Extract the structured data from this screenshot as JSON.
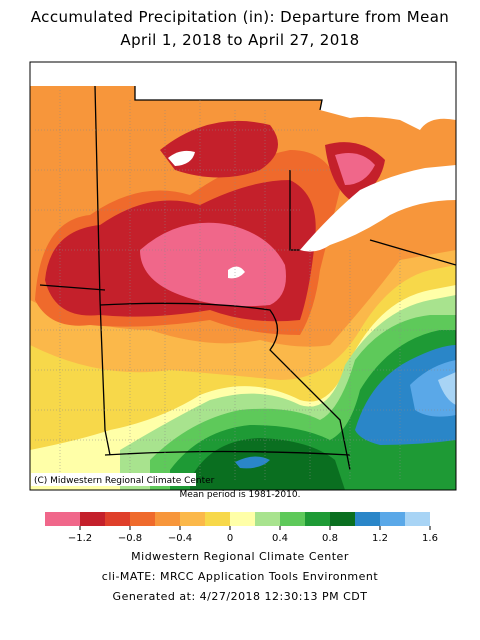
{
  "title": [
    "Accumulated Precipitation (in): Departure from Mean",
    "April 1, 2018 to April 27, 2018"
  ],
  "copyright": "(C) Midwestern Regional Climate Center",
  "mean_period": "Mean period is 1981-2010.",
  "legend": {
    "colors": [
      "#f0678a",
      "#c4202b",
      "#df3f2a",
      "#ef6a2c",
      "#f7963b",
      "#fbb84a",
      "#f7d84a",
      "#ffffa8",
      "#a8e38e",
      "#5ec95a",
      "#1e9a35",
      "#0a6f20",
      "#2a86c8",
      "#5aa8e8",
      "#a8d4f5"
    ],
    "ticks": [
      {
        "value": -1.2,
        "label": "−1.2"
      },
      {
        "value": -0.8,
        "label": "−0.8"
      },
      {
        "value": -0.4,
        "label": "−0.4"
      },
      0,
      0.4,
      0.8,
      1.2,
      1.6
    ]
  },
  "footer": [
    "Midwestern Regional Climate Center",
    "cli-MATE: MRCC Application Tools Environment",
    "Generated at: 4/27/2018 12:30:13 PM CDT"
  ]
}
